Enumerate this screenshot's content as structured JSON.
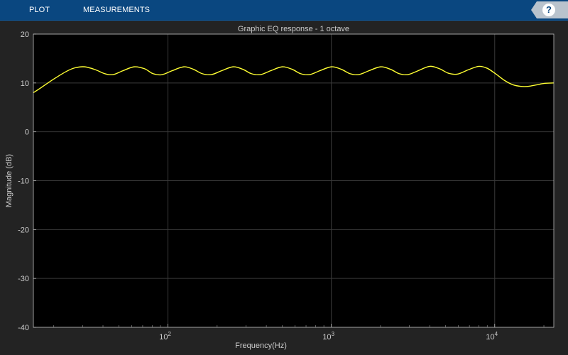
{
  "toolstrip": {
    "tabs": [
      {
        "label": "PLOT"
      },
      {
        "label": "MEASUREMENTS"
      }
    ],
    "help_label": "?"
  },
  "colors": {
    "toolstrip": "#0a4780",
    "figure_background": "#232323",
    "axes_background": "#000000",
    "grid": "#3a3a3a",
    "axis_text": "#cccccc",
    "trace": "#ffff33"
  },
  "chart_data": {
    "type": "line",
    "title": "Graphic EQ response - 1 octave",
    "xlabel": "Frequency(Hz)",
    "ylabel": "Magnitude (dB)",
    "xscale": "log",
    "xlim": [
      15,
      23000
    ],
    "ylim": [
      -40,
      20
    ],
    "grid": true,
    "legend": "none",
    "x_ticks": [
      {
        "value": 100,
        "label_base": "10",
        "label_exp": "2"
      },
      {
        "value": 1000,
        "label_base": "10",
        "label_exp": "3"
      },
      {
        "value": 10000,
        "label_base": "10",
        "label_exp": "4"
      }
    ],
    "y_ticks": [
      {
        "value": 20,
        "label": "20"
      },
      {
        "value": 10,
        "label": "10"
      },
      {
        "value": 0,
        "label": "0"
      },
      {
        "value": -10,
        "label": "-10"
      },
      {
        "value": -20,
        "label": "-20"
      },
      {
        "value": -30,
        "label": "-30"
      },
      {
        "value": -40,
        "label": "-40"
      }
    ],
    "series": [
      {
        "color": "#ffff33",
        "points": [
          [
            15,
            8.0
          ],
          [
            17,
            9.2
          ],
          [
            20,
            10.8
          ],
          [
            24,
            12.4
          ],
          [
            27,
            13.1
          ],
          [
            31,
            13.3
          ],
          [
            36,
            12.7
          ],
          [
            41,
            11.9
          ],
          [
            46,
            11.7
          ],
          [
            53,
            12.5
          ],
          [
            62,
            13.3
          ],
          [
            72,
            12.9
          ],
          [
            81,
            11.9
          ],
          [
            92,
            11.7
          ],
          [
            106,
            12.5
          ],
          [
            125,
            13.3
          ],
          [
            143,
            12.8
          ],
          [
            162,
            11.9
          ],
          [
            184,
            11.7
          ],
          [
            213,
            12.5
          ],
          [
            250,
            13.3
          ],
          [
            287,
            12.8
          ],
          [
            324,
            11.9
          ],
          [
            368,
            11.7
          ],
          [
            425,
            12.5
          ],
          [
            500,
            13.3
          ],
          [
            575,
            12.8
          ],
          [
            648,
            11.9
          ],
          [
            735,
            11.7
          ],
          [
            850,
            12.5
          ],
          [
            1000,
            13.3
          ],
          [
            1150,
            12.8
          ],
          [
            1300,
            11.9
          ],
          [
            1470,
            11.7
          ],
          [
            1700,
            12.5
          ],
          [
            2000,
            13.3
          ],
          [
            2300,
            12.8
          ],
          [
            2600,
            11.9
          ],
          [
            2940,
            11.7
          ],
          [
            3400,
            12.5
          ],
          [
            4000,
            13.4
          ],
          [
            4600,
            12.9
          ],
          [
            5200,
            12.0
          ],
          [
            5900,
            11.8
          ],
          [
            6900,
            12.7
          ],
          [
            8000,
            13.4
          ],
          [
            9000,
            13.0
          ],
          [
            10200,
            11.8
          ],
          [
            11500,
            10.5
          ],
          [
            13000,
            9.6
          ],
          [
            14500,
            9.3
          ],
          [
            16000,
            9.3
          ],
          [
            18000,
            9.6
          ],
          [
            20000,
            9.9
          ],
          [
            23000,
            10.0
          ]
        ]
      }
    ]
  }
}
